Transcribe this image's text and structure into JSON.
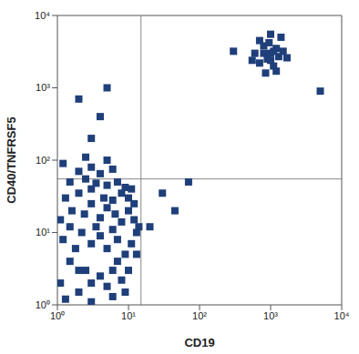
{
  "chart_data": {
    "type": "scatter",
    "x_label": "CD19",
    "y_label": "CD40/TNFRSF5",
    "log": true,
    "color": "#1f3f7a",
    "marker": "square",
    "xlim": [
      1,
      10000
    ],
    "ylim": [
      1,
      10000
    ],
    "xticks": [
      {
        "value": 1,
        "label": "10⁰"
      },
      {
        "value": 10,
        "label": "10¹"
      },
      {
        "value": 100,
        "label": "10²"
      },
      {
        "value": 1000,
        "label": "10³"
      },
      {
        "value": 10000,
        "label": "10⁴"
      }
    ],
    "yticks": [
      {
        "value": 1,
        "label": "10⁰"
      },
      {
        "value": 10,
        "label": "10¹"
      },
      {
        "value": 100,
        "label": "10²"
      },
      {
        "value": 1000,
        "label": "10³"
      },
      {
        "value": 10000,
        "label": "10⁴"
      }
    ],
    "gates": {
      "x": 15,
      "y": 55
    },
    "x": [
      1.1,
      1.5,
      2,
      2.5,
      3,
      4,
      5,
      6,
      8,
      1.2,
      1.8,
      2.2,
      3,
      3.5,
      4,
      5,
      6,
      7,
      9,
      11,
      13,
      1.1,
      1.6,
      2.4,
      3,
      4,
      5,
      6.5,
      8,
      10,
      12,
      14,
      1.3,
      2,
      3,
      4.5,
      6,
      8,
      10,
      12,
      1.5,
      2.5,
      3.5,
      5,
      7,
      9,
      11,
      2,
      3,
      4,
      6,
      1.2,
      2.5,
      5,
      3,
      4,
      2,
      5,
      1.5,
      2,
      7,
      10,
      13,
      1.3,
      3,
      6,
      9,
      600,
      700,
      800,
      900,
      1000,
      1100,
      1200,
      1300,
      1500,
      700,
      1000,
      1400,
      850,
      1200,
      550,
      1700,
      950,
      1100,
      800,
      1000,
      5000,
      30,
      45,
      20,
      70,
      300
    ],
    "y": [
      2,
      4,
      1.5,
      3,
      2,
      2.5,
      1.8,
      3,
      2.2,
      8,
      6,
      10,
      7,
      12,
      9,
      6,
      11,
      8,
      5,
      7,
      10,
      15,
      20,
      18,
      25,
      16,
      22,
      18,
      14,
      20,
      15,
      12,
      30,
      35,
      40,
      30,
      28,
      35,
      30,
      25,
      50,
      55,
      48,
      45,
      50,
      42,
      40,
      70,
      80,
      65,
      75,
      90,
      110,
      100,
      200,
      400,
      700,
      1000,
      12,
      3,
      4,
      3,
      5,
      1.2,
      1.1,
      1.3,
      1.5,
      3000,
      2200,
      3800,
      2500,
      3000,
      2000,
      3500,
      2700,
      3200,
      4500,
      5500,
      5000,
      1600,
      1700,
      2400,
      2600,
      4200,
      3200,
      3000,
      2400,
      900,
      35,
      20,
      12,
      50,
      3200
    ]
  }
}
